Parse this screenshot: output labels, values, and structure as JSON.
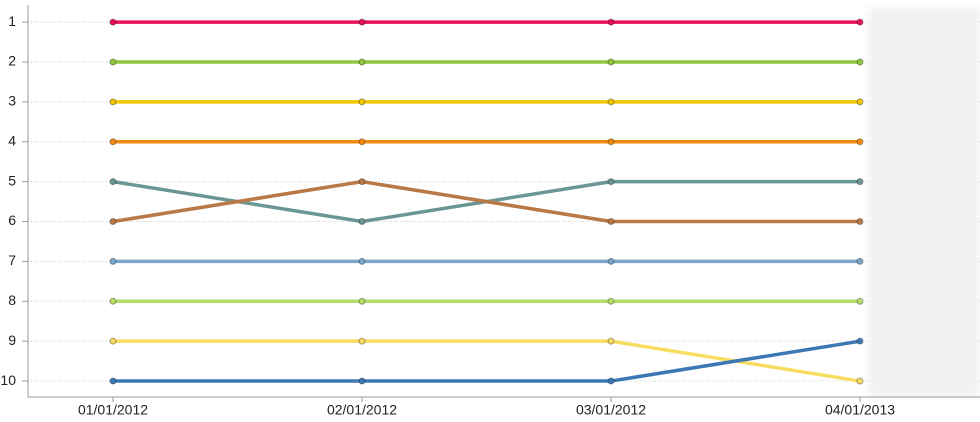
{
  "chart_data": {
    "type": "line",
    "categories": [
      "01/01/2012",
      "02/01/2012",
      "03/01/2012",
      "04/01/2013"
    ],
    "series": [
      {
        "color": "#e8115b",
        "values": [
          1,
          1,
          1,
          1
        ]
      },
      {
        "color": "#8fc73e",
        "values": [
          2,
          2,
          2,
          2
        ]
      },
      {
        "color": "#f2c500",
        "values": [
          3,
          3,
          3,
          3
        ]
      },
      {
        "color": "#f28a0f",
        "values": [
          4,
          4,
          4,
          4
        ]
      },
      {
        "color": "#6a9694",
        "values": [
          5,
          6,
          5,
          5
        ]
      },
      {
        "color": "#b87847",
        "values": [
          6,
          5,
          6,
          6
        ]
      },
      {
        "color": "#7ba5cb",
        "values": [
          7,
          7,
          7,
          7
        ]
      },
      {
        "color": "#b6dc6a",
        "values": [
          8,
          8,
          8,
          8
        ]
      },
      {
        "color": "#f7dc5f",
        "values": [
          9,
          9,
          9,
          10
        ]
      },
      {
        "color": "#3d78b4",
        "values": [
          10,
          10,
          10,
          9
        ]
      }
    ],
    "ylim": [
      10.4,
      0.57
    ],
    "yticks": [
      1,
      2,
      3,
      4,
      5,
      6,
      7,
      8,
      9,
      10
    ],
    "grid": true
  }
}
